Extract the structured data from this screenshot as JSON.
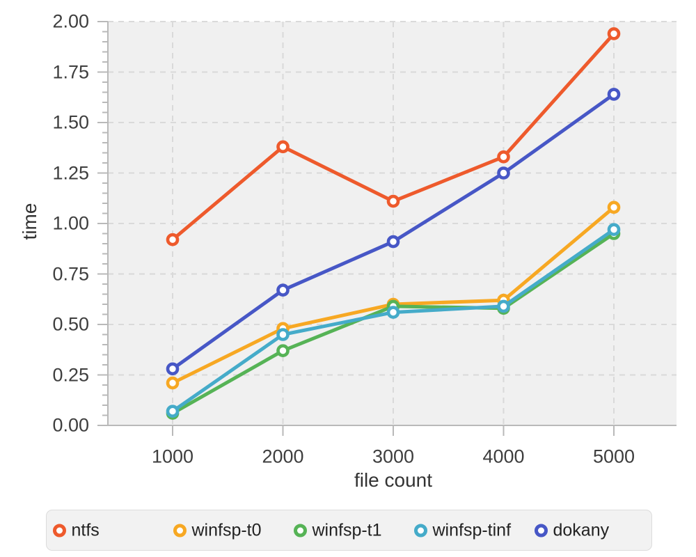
{
  "chart_data": {
    "type": "line",
    "title": "",
    "xlabel": "file count",
    "ylabel": "time",
    "x": [
      1000,
      2000,
      3000,
      4000,
      5000
    ],
    "x_tick_labels": [
      "1000",
      "2000",
      "3000",
      "4000",
      "5000"
    ],
    "ylim": [
      0,
      2
    ],
    "y_major_step": 0.25,
    "y_minor_step": 0.05,
    "y_tick_labels": [
      "0.00",
      "0.25",
      "0.50",
      "0.75",
      "1.00",
      "1.25",
      "1.50",
      "1.75",
      "2.00"
    ],
    "grid": "dashed",
    "legend_position": "bottom",
    "series": [
      {
        "name": "ntfs",
        "color": "#ee5a2c",
        "values": [
          0.92,
          1.38,
          1.11,
          1.33,
          1.94
        ]
      },
      {
        "name": "winfsp-t0",
        "color": "#f7a823",
        "values": [
          0.21,
          0.48,
          0.6,
          0.62,
          1.08
        ]
      },
      {
        "name": "winfsp-t1",
        "color": "#56b356",
        "values": [
          0.06,
          0.37,
          0.59,
          0.58,
          0.95
        ]
      },
      {
        "name": "winfsp-tinf",
        "color": "#45abc9",
        "values": [
          0.07,
          0.45,
          0.56,
          0.59,
          0.97
        ]
      },
      {
        "name": "dokany",
        "color": "#4757c6",
        "values": [
          0.28,
          0.67,
          0.91,
          1.25,
          1.64
        ]
      }
    ],
    "colors": {
      "plot_background": "#f0f0f0",
      "grid_color": "#d9d9d9",
      "axis_color": "#b9b9b9",
      "tick_label_color": "#3e3e3e",
      "axis_title_color": "#333333",
      "marker_fill": "#ffffff",
      "legend_background": "#f2f2f2",
      "legend_border": "#dcdcdc",
      "legend_text_color": "#222222"
    }
  }
}
